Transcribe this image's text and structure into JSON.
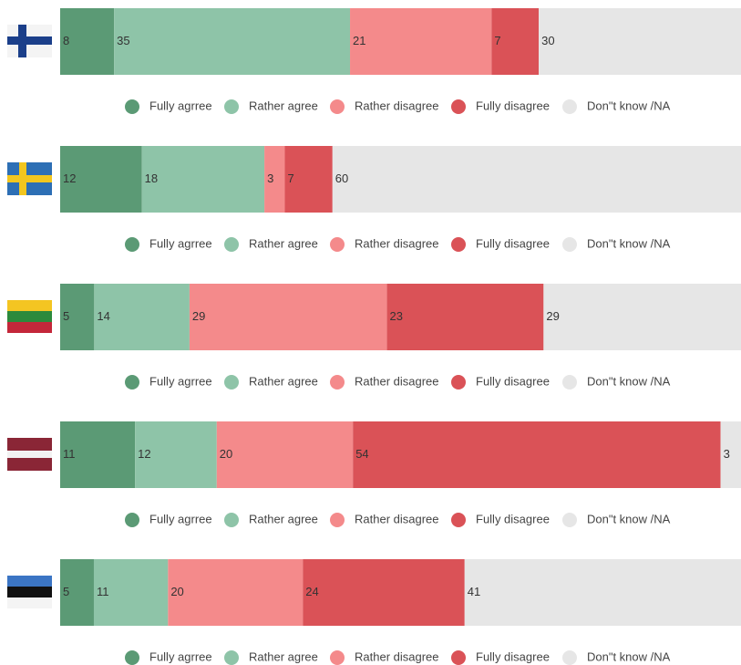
{
  "chart_data": [
    {
      "type": "stacked_bar",
      "xlim": [
        0,
        101
      ],
      "series": [
        {
          "name": "Fully agrree",
          "color": "#5b9a75",
          "values": [
            8
          ]
        },
        {
          "name": "Rather agree",
          "color": "#8ec4a8",
          "values": [
            35
          ]
        },
        {
          "name": "Rather disagree",
          "color": "#f48a8b",
          "values": [
            21
          ]
        },
        {
          "name": "Fully disagree",
          "color": "#da5257",
          "values": [
            7
          ]
        },
        {
          "name": "Don\"t know /NA",
          "color": "#e6e6e6",
          "values": [
            30
          ]
        }
      ]
    },
    {
      "type": "stacked_bar",
      "xlim": [
        0,
        100
      ],
      "series": [
        {
          "name": "Fully agrree",
          "color": "#5b9a75",
          "values": [
            12
          ]
        },
        {
          "name": "Rather agree",
          "color": "#8ec4a8",
          "values": [
            18
          ]
        },
        {
          "name": "Rather disagree",
          "color": "#f48a8b",
          "values": [
            3
          ]
        },
        {
          "name": "Fully disagree",
          "color": "#da5257",
          "values": [
            7
          ]
        },
        {
          "name": "Don\"t know /NA",
          "color": "#e6e6e6",
          "values": [
            60
          ]
        }
      ]
    },
    {
      "type": "stacked_bar",
      "xlim": [
        0,
        100
      ],
      "series": [
        {
          "name": "Fully agrree",
          "color": "#5b9a75",
          "values": [
            5
          ]
        },
        {
          "name": "Rather agree",
          "color": "#8ec4a8",
          "values": [
            14
          ]
        },
        {
          "name": "Rather disagree",
          "color": "#f48a8b",
          "values": [
            29
          ]
        },
        {
          "name": "Fully disagree",
          "color": "#da5257",
          "values": [
            23
          ]
        },
        {
          "name": "Don\"t know /NA",
          "color": "#e6e6e6",
          "values": [
            29
          ]
        }
      ]
    },
    {
      "type": "stacked_bar",
      "xlim": [
        0,
        100
      ],
      "series": [
        {
          "name": "Fully agrree",
          "color": "#5b9a75",
          "values": [
            11
          ]
        },
        {
          "name": "Rather agree",
          "color": "#8ec4a8",
          "values": [
            12
          ]
        },
        {
          "name": "Rather disagree",
          "color": "#f48a8b",
          "values": [
            20
          ]
        },
        {
          "name": "Fully disagree",
          "color": "#da5257",
          "values": [
            54
          ]
        },
        {
          "name": "Don\"t know /NA",
          "color": "#e6e6e6",
          "values": [
            3
          ]
        }
      ]
    },
    {
      "type": "stacked_bar",
      "xlim": [
        0,
        101
      ],
      "series": [
        {
          "name": "Fully agrree",
          "color": "#5b9a75",
          "values": [
            5
          ]
        },
        {
          "name": "Rather agree",
          "color": "#8ec4a8",
          "values": [
            11
          ]
        },
        {
          "name": "Rather disagree",
          "color": "#f48a8b",
          "values": [
            20
          ]
        },
        {
          "name": "Fully disagree",
          "color": "#da5257",
          "values": [
            24
          ]
        },
        {
          "name": "Don\"t know /NA",
          "color": "#e6e6e6",
          "values": [
            41
          ]
        }
      ]
    }
  ]
}
